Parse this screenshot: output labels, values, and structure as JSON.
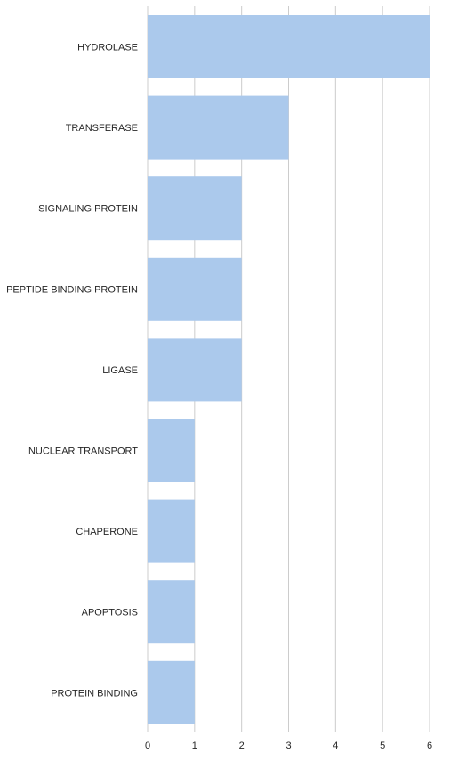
{
  "chart_data": {
    "type": "bar",
    "orientation": "horizontal",
    "categories": [
      "HYDROLASE",
      "TRANSFERASE",
      "SIGNALING PROTEIN",
      "PEPTIDE BINDING PROTEIN",
      "LIGASE",
      "NUCLEAR TRANSPORT",
      "CHAPERONE",
      "APOPTOSIS",
      "PROTEIN BINDING"
    ],
    "values": [
      6,
      3,
      2,
      2,
      2,
      1,
      1,
      1,
      1
    ],
    "xlim": [
      0,
      6
    ],
    "xticks": [
      0,
      1,
      2,
      3,
      4,
      5,
      6
    ],
    "title": "",
    "xlabel": "",
    "ylabel": "",
    "grid": "vertical",
    "bar_color": "#abc9ec",
    "grid_color": "#cccccc"
  }
}
